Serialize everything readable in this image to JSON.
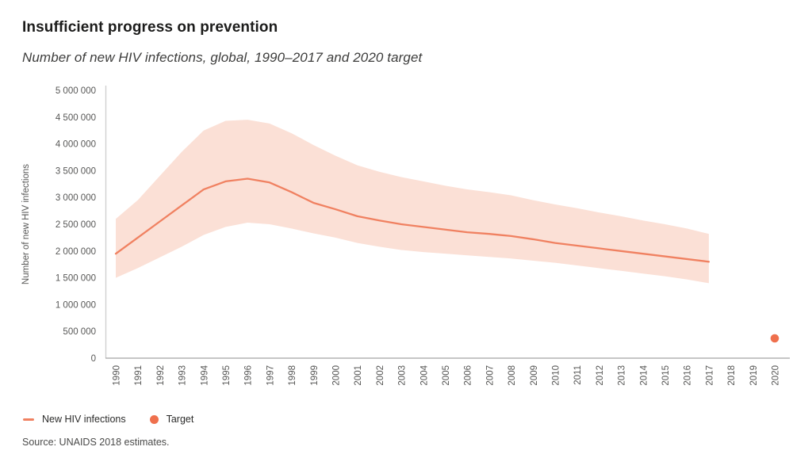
{
  "header": {
    "title": "Insufficient progress on prevention",
    "subtitle": "Number of new HIV infections, global, 1990–2017 and 2020 target"
  },
  "chart_data": {
    "type": "line",
    "title": "Number of new HIV infections, global, 1990–2017 and 2020 target",
    "xlabel": "",
    "ylabel": "Number of new HIV infections",
    "ylim": [
      0,
      5000000
    ],
    "xlim": [
      1990,
      2020
    ],
    "grid": false,
    "legend_position": "bottom-left",
    "x": [
      1990,
      1991,
      1992,
      1993,
      1994,
      1995,
      1996,
      1997,
      1998,
      1999,
      2000,
      2001,
      2002,
      2003,
      2004,
      2005,
      2006,
      2007,
      2008,
      2009,
      2010,
      2011,
      2012,
      2013,
      2014,
      2015,
      2016,
      2017
    ],
    "series": [
      {
        "name": "New HIV infections (estimate)",
        "values": [
          1950000,
          2250000,
          2550000,
          2850000,
          3150000,
          3300000,
          3350000,
          3280000,
          3100000,
          2900000,
          2780000,
          2650000,
          2570000,
          2500000,
          2450000,
          2400000,
          2350000,
          2320000,
          2280000,
          2220000,
          2150000,
          2100000,
          2050000,
          2000000,
          1950000,
          1900000,
          1850000,
          1800000
        ]
      },
      {
        "name": "Uncertainty bound (upper)",
        "values": [
          2600000,
          2950000,
          3400000,
          3850000,
          4250000,
          4430000,
          4450000,
          4380000,
          4200000,
          3980000,
          3780000,
          3600000,
          3480000,
          3380000,
          3300000,
          3220000,
          3150000,
          3100000,
          3040000,
          2950000,
          2870000,
          2800000,
          2720000,
          2650000,
          2570000,
          2500000,
          2420000,
          2320000
        ]
      },
      {
        "name": "Uncertainty bound (lower)",
        "values": [
          1500000,
          1680000,
          1880000,
          2080000,
          2300000,
          2450000,
          2530000,
          2500000,
          2420000,
          2330000,
          2250000,
          2150000,
          2080000,
          2020000,
          1980000,
          1950000,
          1920000,
          1890000,
          1860000,
          1820000,
          1780000,
          1730000,
          1680000,
          1630000,
          1580000,
          1530000,
          1470000,
          1400000
        ]
      }
    ],
    "target": {
      "name": "Target",
      "x": 2020,
      "value": 370000
    },
    "xticks": [
      1990,
      1991,
      1992,
      1993,
      1994,
      1995,
      1996,
      1997,
      1998,
      1999,
      2000,
      2001,
      2002,
      2003,
      2004,
      2005,
      2006,
      2007,
      2008,
      2009,
      2010,
      2011,
      2012,
      2013,
      2014,
      2015,
      2016,
      2017,
      2018,
      2019,
      2020
    ],
    "yticks": {
      "values": [
        0,
        500000,
        1000000,
        1500000,
        2000000,
        2500000,
        3000000,
        3500000,
        4000000,
        4500000,
        5000000
      ],
      "labels": [
        "0",
        "500 000",
        "1 000 000",
        "1 500 000",
        "2 000 000",
        "2 500 000",
        "3 000 000",
        "3 500 000",
        "4 000 000",
        "4 500 000",
        "5 000 000"
      ]
    },
    "colors": {
      "line": "#f08161",
      "band": "#fbe0d6",
      "target": "#ef704d",
      "y_axis_line": "#cdcdcd",
      "x_axis_line": "#a5a5a5",
      "tick_text": "#575756"
    }
  },
  "legend": {
    "items": [
      {
        "label": "New HIV infections",
        "swatch": "dash"
      },
      {
        "label": "Target",
        "swatch": "dot"
      }
    ]
  },
  "source": "Source: UNAIDS 2018 estimates."
}
